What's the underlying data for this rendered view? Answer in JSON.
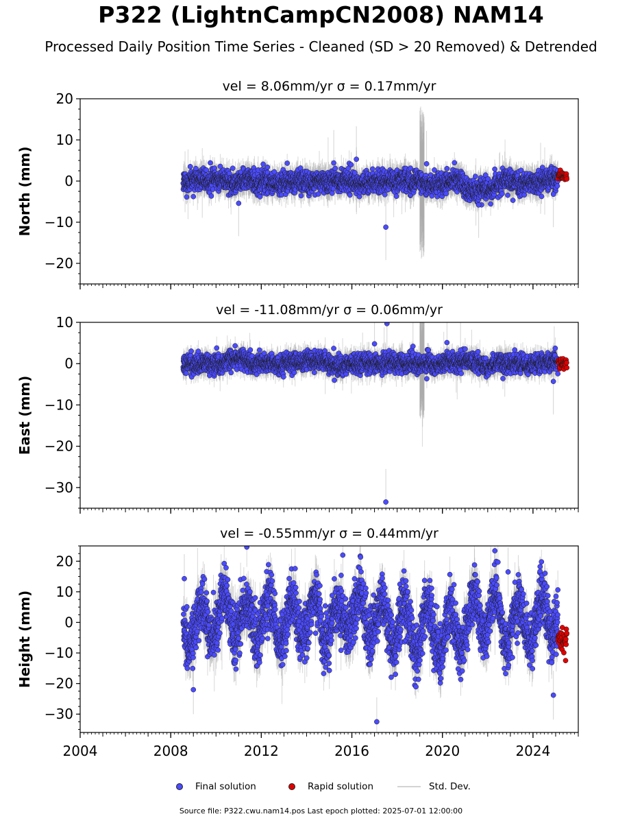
{
  "title": "P322 (LightnCampCN2008) NAM14",
  "subtitle": "Processed Daily Position Time Series - Cleaned (SD > 20 Removed) & Detrended",
  "footer": "Source file: P322.cwu.nam14.pos  Last epoch plotted: 2025-07-01 12:00:00",
  "legend": {
    "final": "Final solution",
    "rapid": "Rapid solution",
    "std": "Std. Dev."
  },
  "colors": {
    "final": "#4b4bff",
    "rapid": "#e00000",
    "std": "#a8a8a8",
    "marker_edge": "#1a1a1a"
  },
  "chart_data": [
    {
      "type": "scatter",
      "component": "north",
      "title": "vel = 8.06mm/yr   σ = 0.17mm/yr",
      "ylabel": "North (mm)",
      "xlim": [
        2004.0,
        2026.0
      ],
      "ylim": [
        -25,
        20
      ],
      "yticks": [
        20,
        10,
        0,
        -10,
        -20
      ],
      "xticks": [
        2004,
        2008,
        2012,
        2016,
        2020,
        2024
      ],
      "data_start": 2008.55,
      "data_end": 2025.2,
      "rapid_start": 2025.1,
      "rapid_end": 2025.5,
      "typical_scatter_mm": 1.3,
      "typical_sigma_mm": 2.5,
      "outliers": [
        [
          2017.5,
          -11.2
        ],
        [
          2015.2,
          4.4
        ],
        [
          2016.2,
          5.3
        ],
        [
          2019.3,
          4.2
        ],
        [
          2011.0,
          -5.4
        ],
        [
          2021.6,
          -5.8
        ],
        [
          2024.9,
          -3.2
        ]
      ],
      "noisy_period": [
        2019.0,
        2019.2,
        18
      ]
    },
    {
      "type": "scatter",
      "component": "east",
      "title": "vel = -11.08mm/yr   σ = 0.06mm/yr",
      "ylabel": "East (mm)",
      "xlim": [
        2004.0,
        2026.0
      ],
      "ylim": [
        -35,
        10
      ],
      "yticks": [
        10,
        0,
        -10,
        -20,
        -30
      ],
      "xticks": [
        2004,
        2008,
        2012,
        2016,
        2020,
        2024
      ],
      "data_start": 2008.55,
      "data_end": 2025.2,
      "rapid_start": 2025.1,
      "rapid_end": 2025.5,
      "typical_scatter_mm": 1.1,
      "typical_sigma_mm": 2.0,
      "outliers": [
        [
          2017.5,
          -33.5
        ],
        [
          2017.55,
          9.7
        ],
        [
          2017.0,
          4.8
        ],
        [
          2018.7,
          4.2
        ],
        [
          2020.2,
          5.1
        ],
        [
          2020.8,
          3.3
        ],
        [
          2024.9,
          -4.3
        ]
      ],
      "noisy_period": [
        2019.0,
        2019.2,
        14
      ]
    },
    {
      "type": "scatter",
      "component": "height",
      "title": "vel = -0.55mm/yr   σ = 0.44mm/yr",
      "ylabel": "Height (mm)",
      "xlim": [
        2004.0,
        2026.0
      ],
      "ylim": [
        -36,
        25
      ],
      "yticks": [
        20,
        10,
        0,
        -10,
        -20,
        -30
      ],
      "xticks": [
        2004,
        2008,
        2012,
        2016,
        2020,
        2024
      ],
      "xticklabels": [
        "2004",
        "2008",
        "2012",
        "2016",
        "2020",
        "2024"
      ],
      "data_start": 2008.55,
      "data_end": 2025.2,
      "rapid_start": 2025.1,
      "rapid_end": 2025.5,
      "seasonal_amplitude_mm": 7,
      "typical_scatter_mm": 4.5,
      "typical_sigma_mm": 5.0,
      "outliers": [
        [
          2017.1,
          -32.5
        ],
        [
          2015.6,
          22.0
        ],
        [
          2009.0,
          -22.0
        ],
        [
          2024.9,
          -23.8
        ],
        [
          2008.6,
          14.3
        ],
        [
          2022.9,
          16.5
        ]
      ],
      "noisy_period": [
        2019.0,
        2019.2,
        8
      ]
    }
  ]
}
